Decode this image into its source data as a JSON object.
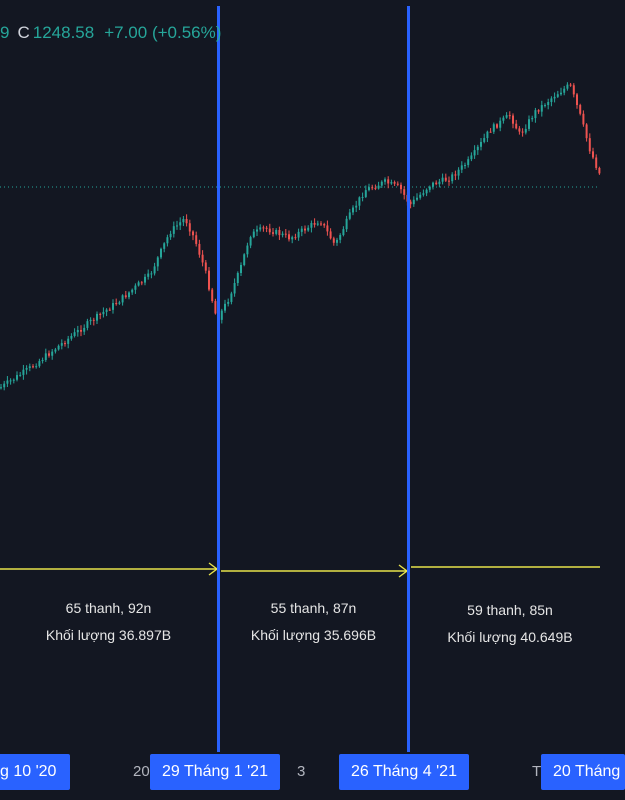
{
  "legend": {
    "prefix_value": "9",
    "close_label": "C",
    "close_value": "1248.58",
    "change": "+7.00 (+0.56%)"
  },
  "ranges": [
    {
      "bars": "65 thanh, 92n",
      "volume": "Khối lượng 36.897B"
    },
    {
      "bars": "55 thanh, 87n",
      "volume": "Khối lượng 35.696B"
    },
    {
      "bars": "59 thanh, 85n",
      "volume": "Khối lượng 40.649B"
    }
  ],
  "time_axis": {
    "tags": [
      "g 10 '20",
      "29 Tháng 1 '21",
      "26 Tháng 4 '21",
      "20 Tháng"
    ],
    "labels": [
      "20",
      "3",
      "T"
    ]
  },
  "colors": {
    "background": "#131722",
    "up": "#26a69a",
    "down": "#ef5350",
    "marker": "#2962ff",
    "range_arrow": "#e8e34a",
    "price_line": "#26a69a"
  },
  "chart_data": {
    "type": "candlestick",
    "title": "",
    "last_close": 1248.58,
    "change": 7.0,
    "change_pct": 0.56,
    "marked_dates": [
      "29 Tháng 1 '21",
      "26 Tháng 4 '21"
    ],
    "series": [
      {
        "segment": "to 29 Tháng 1 '21",
        "bars": 65,
        "days": 92,
        "volume_B": 36.897
      },
      {
        "segment": "to 26 Tháng 4 '21",
        "bars": 55,
        "days": 87,
        "volume_B": 35.696
      },
      {
        "segment": "to 20 Tháng",
        "bars": 59,
        "days": 85,
        "volume_B": 40.649
      }
    ]
  }
}
